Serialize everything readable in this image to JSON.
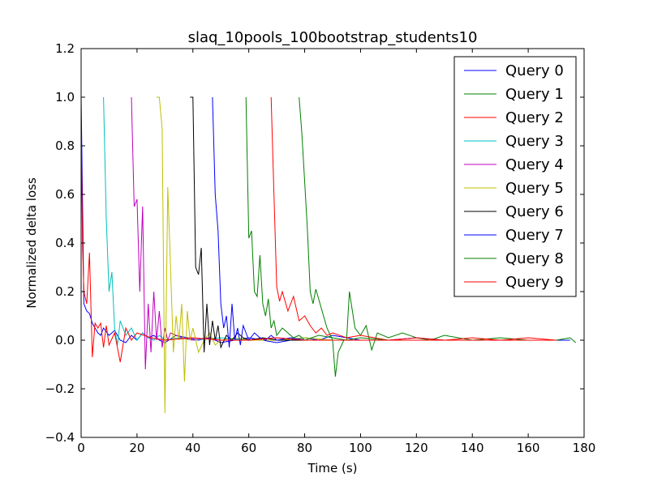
{
  "chart_data": {
    "type": "line",
    "title": "slaq_10pools_100bootstrap_students10",
    "xlabel": "Time (s)",
    "ylabel": "Normalized delta loss",
    "xlim": [
      0,
      180
    ],
    "ylim": [
      -0.4,
      1.2
    ],
    "xticks": [
      0,
      20,
      40,
      60,
      80,
      100,
      120,
      140,
      160,
      180
    ],
    "yticks": [
      -0.4,
      -0.2,
      0.0,
      0.2,
      0.4,
      0.6,
      0.8,
      1.0,
      1.2
    ],
    "xtick_labels": [
      "0",
      "20",
      "40",
      "60",
      "80",
      "100",
      "120",
      "140",
      "160",
      "180"
    ],
    "ytick_labels": [
      "−0.4",
      "−0.2",
      "0.0",
      "0.2",
      "0.4",
      "0.6",
      "0.8",
      "1.0",
      "1.2"
    ],
    "grid": false,
    "legend_position": "top-right",
    "series": [
      {
        "name": "Query 0",
        "color": "#0000ff",
        "x": [
          0,
          1,
          2,
          3,
          4,
          5,
          6,
          7,
          8,
          10,
          12,
          14,
          16,
          18,
          20,
          22,
          24,
          26,
          28,
          30,
          34,
          38,
          42,
          46,
          50,
          55,
          60,
          65,
          70,
          75,
          80,
          85,
          90,
          95,
          100,
          110,
          120,
          130,
          140,
          150,
          160,
          170,
          175
        ],
        "y": [
          1.0,
          0.15,
          0.12,
          0.11,
          0.07,
          0.05,
          0.03,
          0.02,
          0.05,
          0.02,
          0.04,
          0.0,
          -0.01,
          0.02,
          0.0,
          0.03,
          0.01,
          0.02,
          0.0,
          -0.01,
          0.02,
          0.01,
          0.0,
          0.01,
          -0.01,
          0.0,
          0.01,
          0.0,
          -0.01,
          0.0,
          0.01,
          0.0,
          0.02,
          0.01,
          0.0,
          0.0,
          0.01,
          0.0,
          0.0,
          0.0,
          0.0,
          0.0,
          0.0
        ]
      },
      {
        "name": "Query 1",
        "color": "#008000",
        "x": [
          78,
          79,
          80,
          81,
          82,
          83,
          84,
          85,
          86,
          88,
          90,
          91,
          92,
          94,
          95,
          96,
          98,
          100,
          102,
          104,
          106,
          110,
          115,
          120,
          125,
          130,
          140,
          150,
          160,
          170,
          175,
          177
        ],
        "y": [
          1.0,
          0.85,
          0.65,
          0.45,
          0.2,
          0.15,
          0.21,
          0.17,
          0.13,
          0.05,
          0.0,
          -0.15,
          -0.05,
          0.0,
          0.0,
          0.2,
          0.05,
          0.02,
          0.06,
          -0.04,
          0.03,
          0.01,
          0.03,
          0.01,
          0.0,
          0.02,
          0.0,
          0.01,
          0.0,
          0.0,
          0.01,
          -0.01
        ]
      },
      {
        "name": "Query 2",
        "color": "#ff0000",
        "x": [
          68,
          69,
          70,
          71,
          72,
          74,
          76,
          78,
          80,
          82,
          84,
          86,
          88,
          90,
          95,
          100,
          110,
          120,
          130,
          140,
          150,
          160,
          170
        ],
        "y": [
          1.0,
          0.6,
          0.22,
          0.16,
          0.2,
          0.12,
          0.18,
          0.08,
          0.1,
          0.06,
          0.03,
          0.05,
          0.02,
          0.03,
          0.01,
          0.02,
          0.0,
          0.01,
          0.0,
          0.01,
          0.0,
          0.01,
          0.0
        ]
      },
      {
        "name": "Query 3",
        "color": "#00bfbf",
        "x": [
          8,
          9,
          10,
          11,
          12,
          13,
          14,
          16,
          18,
          20,
          22,
          24,
          26,
          28,
          30,
          35,
          40,
          50,
          60,
          70,
          80,
          90,
          100,
          110,
          120,
          130,
          140,
          150,
          160,
          170
        ],
        "y": [
          1.0,
          0.5,
          0.2,
          0.28,
          0.05,
          -0.02,
          0.08,
          0.02,
          0.05,
          0.0,
          0.03,
          0.01,
          0.0,
          0.02,
          0.0,
          0.01,
          0.0,
          0.01,
          0.0,
          0.0,
          0.01,
          0.0,
          0.0,
          0.0,
          0.0,
          0.0,
          0.0,
          0.0,
          0.0,
          0.0
        ]
      },
      {
        "name": "Query 4",
        "color": "#bf00bf",
        "x": [
          18,
          19,
          20,
          21,
          22,
          23,
          24,
          25,
          26,
          27,
          28,
          29,
          30,
          31,
          32,
          34,
          36,
          40,
          45,
          50,
          60,
          70,
          80,
          90,
          100,
          110,
          120,
          130,
          140,
          150,
          160,
          170
        ],
        "y": [
          1.0,
          0.55,
          0.58,
          0.2,
          0.55,
          -0.12,
          0.15,
          -0.05,
          0.2,
          0.0,
          0.12,
          -0.03,
          0.05,
          0.0,
          0.03,
          0.02,
          0.01,
          0.0,
          0.01,
          0.0,
          0.0,
          0.01,
          0.0,
          0.0,
          0.0,
          0.0,
          0.0,
          0.0,
          0.0,
          0.0,
          0.0,
          0.0
        ]
      },
      {
        "name": "Query 5",
        "color": "#bfbf00",
        "x": [
          27,
          28,
          29,
          30,
          31,
          32,
          33,
          34,
          35,
          36,
          37,
          38,
          39,
          40,
          42,
          44,
          46,
          48,
          50,
          55,
          60,
          70,
          80,
          90,
          100,
          110,
          120,
          130,
          140,
          150,
          160
        ],
        "y": [
          1.0,
          1.0,
          0.87,
          -0.3,
          0.63,
          0.3,
          -0.05,
          0.1,
          0.0,
          0.15,
          -0.17,
          0.12,
          0.0,
          0.05,
          -0.05,
          0.0,
          0.03,
          -0.02,
          0.0,
          0.01,
          0.0,
          0.0,
          0.01,
          0.0,
          0.0,
          0.0,
          0.0,
          0.0,
          0.0,
          0.0,
          0.0
        ]
      },
      {
        "name": "Query 6",
        "color": "#000000",
        "x": [
          39,
          40,
          41,
          42,
          43,
          44,
          45,
          46,
          47,
          48,
          49,
          50,
          52,
          54,
          56,
          58,
          60,
          65,
          70,
          80,
          90,
          100,
          110,
          120,
          130,
          140,
          150,
          160,
          170
        ],
        "y": [
          1.0,
          1.0,
          0.3,
          0.27,
          0.38,
          -0.05,
          0.15,
          -0.02,
          0.08,
          0.0,
          0.06,
          -0.03,
          0.02,
          0.0,
          0.03,
          0.01,
          0.0,
          0.01,
          0.0,
          0.0,
          0.0,
          0.0,
          0.0,
          0.0,
          0.0,
          0.0,
          0.0,
          0.0,
          0.0
        ]
      },
      {
        "name": "Query 7",
        "color": "#0000ff",
        "x": [
          47,
          48,
          49,
          50,
          51,
          52,
          53,
          54,
          55,
          56,
          57,
          58,
          60,
          62,
          64,
          66,
          68,
          70,
          75,
          80,
          90,
          100,
          110,
          120,
          130,
          140,
          150,
          160,
          170
        ],
        "y": [
          1.0,
          0.6,
          0.45,
          0.15,
          0.05,
          0.1,
          -0.03,
          0.15,
          0.0,
          0.05,
          -0.02,
          0.06,
          0.0,
          0.03,
          0.01,
          0.0,
          0.02,
          0.0,
          0.01,
          0.0,
          0.0,
          0.0,
          0.0,
          0.0,
          0.0,
          0.0,
          0.0,
          0.0,
          0.0
        ]
      },
      {
        "name": "Query 8",
        "color": "#008000",
        "x": [
          59,
          60,
          61,
          62,
          63,
          64,
          65,
          66,
          67,
          68,
          69,
          70,
          72,
          74,
          76,
          78,
          80,
          85,
          90,
          95,
          100,
          110,
          120,
          130,
          140,
          150,
          160,
          170
        ],
        "y": [
          1.0,
          0.42,
          0.45,
          0.2,
          0.18,
          0.35,
          0.15,
          0.1,
          0.17,
          0.05,
          0.08,
          0.02,
          0.05,
          0.03,
          0.01,
          0.02,
          0.0,
          0.02,
          0.01,
          0.0,
          0.01,
          0.0,
          0.0,
          0.0,
          0.0,
          0.0,
          0.0,
          0.0
        ]
      },
      {
        "name": "Query 9",
        "color": "#ff0000",
        "x": [
          0,
          0.5,
          1,
          2,
          3,
          4,
          5,
          6,
          7,
          8,
          9,
          10,
          12,
          14,
          16,
          18,
          20,
          25,
          30,
          40,
          50,
          60,
          70,
          80,
          90,
          100,
          110,
          120,
          130,
          140,
          150,
          160,
          170
        ],
        "y": [
          0.9,
          0.4,
          0.2,
          0.15,
          0.36,
          -0.07,
          0.07,
          0.05,
          0.07,
          -0.03,
          0.06,
          -0.02,
          0.03,
          -0.09,
          0.05,
          0.0,
          0.03,
          0.01,
          0.0,
          0.01,
          0.0,
          0.0,
          0.01,
          0.0,
          0.0,
          0.0,
          0.0,
          0.0,
          0.0,
          0.0,
          0.0,
          0.0,
          0.0
        ]
      }
    ]
  }
}
